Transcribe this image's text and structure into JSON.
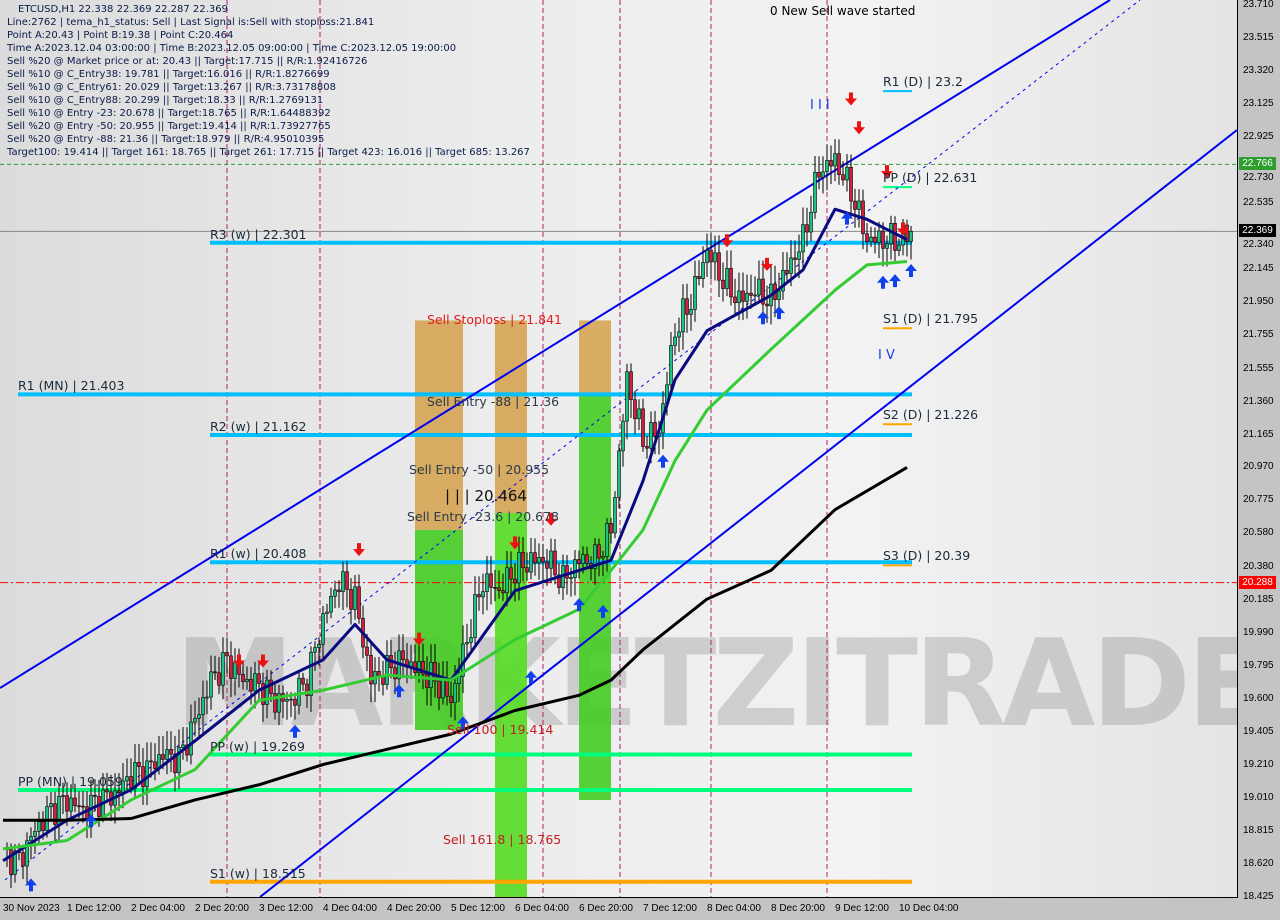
{
  "chart_data": {
    "type": "candlestick",
    "symbol_header": "ETCUSD,H1  22.338 22.369 22.287 22.369",
    "info_lines": [
      "Line:2762 | tema_h1_status: Sell | Last Signal is:Sell with stoploss:21.841",
      "Point A:20.43 | Point B:19.38 | Point C:20.464",
      "Time A:2023.12.04 03:00:00 | Time B:2023.12.05 09:00:00 | Time C:2023.12.05 19:00:00",
      "Sell %20 @ Market price or at: 20.43 || Target:17.715 || R/R:1.92416726",
      "Sell %10 @ C_Entry38: 19.781 || Target:16.016 || R/R:1.8276699",
      "Sell %10 @ C_Entry61: 20.029 || Target:13.267 || R/R:3.73178808",
      "Sell %10 @ C_Entry88: 20.299 || Target:18.33 || R/R:1.2769131",
      "Sell %10 @ Entry -23: 20.678 || Target:18.765 || R/R:1.64488392",
      "Sell %20 @ Entry -50: 20.955 || Target:19.414 || R/R:1.73927765",
      "Sell %20 @ Entry -88: 21.36 || Target:18.979 || R/R:4.95010395",
      "Target100: 19.414 || Target 161: 18.765 || Target 261: 17.715 || Target 423: 16.016 || Target 685: 13.267"
    ],
    "ylim": [
      18.425,
      23.71
    ],
    "y_ticks": [
      "23.710",
      "23.515",
      "23.320",
      "23.125",
      "22.925",
      "22.730",
      "22.535",
      "22.340",
      "22.145",
      "21.950",
      "21.755",
      "21.555",
      "21.360",
      "21.165",
      "20.970",
      "20.775",
      "20.580",
      "20.380",
      "20.185",
      "19.990",
      "19.795",
      "19.600",
      "19.405",
      "19.210",
      "19.010",
      "18.815",
      "18.620",
      "18.425"
    ],
    "x_ticks": [
      {
        "label": "30 Nov 2023",
        "hour": 0
      },
      {
        "label": "1 Dec 12:00",
        "hour": 16
      },
      {
        "label": "2 Dec 04:00",
        "hour": 32
      },
      {
        "label": "2 Dec 20:00",
        "hour": 48
      },
      {
        "label": "3 Dec 12:00",
        "hour": 64
      },
      {
        "label": "4 Dec 04:00",
        "hour": 80
      },
      {
        "label": "4 Dec 20:00",
        "hour": 96
      },
      {
        "label": "5 Dec 12:00",
        "hour": 112
      },
      {
        "label": "6 Dec 04:00",
        "hour": 128
      },
      {
        "label": "6 Dec 20:00",
        "hour": 144
      },
      {
        "label": "7 Dec 12:00",
        "hour": 160
      },
      {
        "label": "8 Dec 04:00",
        "hour": 176
      },
      {
        "label": "8 Dec 20:00",
        "hour": 192
      },
      {
        "label": "9 Dec 12:00",
        "hour": 208
      },
      {
        "label": "10 Dec 04:00",
        "hour": 224
      }
    ],
    "close_every_4h": [
      18.675,
      18.64,
      18.82,
      18.94,
      19.0,
      18.94,
      19.0,
      19.03,
      19.15,
      19.18,
      19.27,
      19.24,
      19.47,
      19.71,
      19.83,
      19.71,
      19.68,
      19.59,
      19.59,
      19.71,
      20.07,
      20.3,
      20.19,
      19.71,
      19.77,
      19.83,
      19.77,
      19.71,
      19.59,
      19.95,
      20.3,
      20.24,
      20.36,
      20.42,
      20.42,
      20.3,
      20.42,
      20.42,
      20.6,
      21.49,
      21.13,
      21.19,
      21.78,
      21.96,
      22.26,
      22.08,
      21.96,
      22.02,
      21.96,
      22.14,
      22.32,
      22.73,
      22.79,
      22.61,
      22.32,
      22.32,
      22.32,
      22.369
    ],
    "moving_averages": [
      {
        "color": "#0a0a80",
        "points": [
          [
            0,
            18.64
          ],
          [
            16,
            18.88
          ],
          [
            32,
            19.06
          ],
          [
            48,
            19.35
          ],
          [
            64,
            19.65
          ],
          [
            80,
            19.83
          ],
          [
            88,
            20.04
          ],
          [
            96,
            19.83
          ],
          [
            112,
            19.71
          ],
          [
            128,
            20.24
          ],
          [
            144,
            20.36
          ],
          [
            152,
            20.42
          ],
          [
            160,
            20.89
          ],
          [
            168,
            21.49
          ],
          [
            176,
            21.78
          ],
          [
            192,
            21.99
          ],
          [
            200,
            22.14
          ],
          [
            208,
            22.5
          ],
          [
            216,
            22.44
          ],
          [
            226,
            22.32
          ]
        ]
      },
      {
        "color": "#33cc33",
        "points": [
          [
            0,
            18.71
          ],
          [
            16,
            18.76
          ],
          [
            32,
            19.0
          ],
          [
            48,
            19.18
          ],
          [
            64,
            19.59
          ],
          [
            80,
            19.65
          ],
          [
            96,
            19.74
          ],
          [
            112,
            19.71
          ],
          [
            128,
            19.95
          ],
          [
            144,
            20.13
          ],
          [
            152,
            20.36
          ],
          [
            160,
            20.6
          ],
          [
            168,
            21.01
          ],
          [
            176,
            21.31
          ],
          [
            192,
            21.67
          ],
          [
            208,
            22.02
          ],
          [
            216,
            22.17
          ],
          [
            226,
            22.19
          ]
        ]
      },
      {
        "color": "#000000",
        "points": [
          [
            0,
            18.88
          ],
          [
            16,
            18.88
          ],
          [
            32,
            18.89
          ],
          [
            48,
            19.0
          ],
          [
            64,
            19.09
          ],
          [
            80,
            19.21
          ],
          [
            96,
            19.3
          ],
          [
            112,
            19.39
          ],
          [
            128,
            19.53
          ],
          [
            144,
            19.62
          ],
          [
            152,
            19.71
          ],
          [
            160,
            19.89
          ],
          [
            176,
            20.19
          ],
          [
            192,
            20.36
          ],
          [
            208,
            20.72
          ],
          [
            226,
            20.97
          ]
        ]
      }
    ],
    "levels": [
      {
        "label": "R3 (w) | 22.301",
        "value": 22.301,
        "color": "#00bfff",
        "scope": "w"
      },
      {
        "label": "R1 (MN) | 21.403",
        "value": 21.403,
        "color": "#00bfff",
        "scope": "mn"
      },
      {
        "label": "R2 (w) | 21.162",
        "value": 21.162,
        "color": "#00bfff",
        "scope": "w"
      },
      {
        "label": "R1 (w) | 20.408",
        "value": 20.408,
        "color": "#00bfff",
        "scope": "w"
      },
      {
        "label": "PP (w) | 19.269",
        "value": 19.269,
        "color": "#00ff7f",
        "scope": "w"
      },
      {
        "label": "PP (MN) | 19.059",
        "value": 19.059,
        "color": "#00ff7f",
        "scope": "mn"
      },
      {
        "label": "S1 (w) | 18.515",
        "value": 18.515,
        "color": "#ffa500",
        "scope": "w"
      },
      {
        "label": "R1 (D) | 23.2",
        "value": 23.2,
        "color": "#00bfff",
        "scope": "d"
      },
      {
        "label": "PP (D) | 22.631",
        "value": 22.631,
        "color": "#00ff7f",
        "scope": "d"
      },
      {
        "label": "S1 (D) | 21.795",
        "value": 21.795,
        "color": "#ffa500",
        "scope": "d"
      },
      {
        "label": "S2 (D) | 21.226",
        "value": 21.226,
        "color": "#ffa500",
        "scope": "d"
      },
      {
        "label": "S3 (D) | 20.39",
        "value": 20.39,
        "color": "#ffa500",
        "scope": "d"
      }
    ],
    "price_tags": [
      {
        "value": 22.766,
        "text": "22.766",
        "bg": "#2e9e2e",
        "fg": "#ffffff",
        "line": "dashed-green"
      },
      {
        "value": 22.369,
        "text": "22.369",
        "bg": "#000000",
        "fg": "#ffffff",
        "line": "gray"
      },
      {
        "value": 20.288,
        "text": "20.288",
        "bg": "#ff0000",
        "fg": "#ffffff",
        "line": "dashdot-red"
      }
    ],
    "annotations": [
      {
        "text": "Sell Stoploss | 21.841",
        "value": 21.841,
        "hour": 106,
        "color": "#e02020"
      },
      {
        "text": "Sell Entry -88 | 21.36",
        "value": 21.36,
        "hour": 106,
        "color": "#2a3a4a"
      },
      {
        "text": "Sell Entry -50 | 20.955",
        "value": 20.955,
        "hour": 101.5,
        "color": "#2a3a4a"
      },
      {
        "text": "Sell Entry -23.6 | 20.678",
        "value": 20.678,
        "hour": 101,
        "color": "#2a3a4a"
      },
      {
        "text": "Sell 100 | 19.414",
        "value": 19.414,
        "hour": 111,
        "color": "#c02020"
      },
      {
        "text": "Sell 161.8 | 18.765",
        "value": 18.765,
        "hour": 110,
        "color": "#c02020"
      }
    ],
    "wave_label": "| | | 20.464",
    "wave_status": "0 New Sell wave started",
    "wave_marks": [
      "I I I",
      "I V"
    ],
    "signals_down": [
      [
        59,
        19.82
      ],
      [
        65,
        19.82
      ],
      [
        89,
        20.48
      ],
      [
        104,
        19.95
      ],
      [
        128,
        20.52
      ],
      [
        137,
        20.66
      ],
      [
        181,
        22.31
      ],
      [
        191,
        22.17
      ],
      [
        212,
        23.15
      ],
      [
        214,
        22.98
      ],
      [
        221,
        22.72
      ],
      [
        225,
        22.38
      ]
    ],
    "signals_up": [
      [
        7,
        18.5
      ],
      [
        22,
        18.88
      ],
      [
        73,
        19.41
      ],
      [
        99,
        19.65
      ],
      [
        115,
        19.46
      ],
      [
        132,
        19.73
      ],
      [
        144,
        20.16
      ],
      [
        150,
        20.12
      ],
      [
        165,
        21.01
      ],
      [
        190,
        21.86
      ],
      [
        194,
        21.89
      ],
      [
        211,
        22.45
      ],
      [
        220,
        22.07
      ],
      [
        223,
        22.08
      ],
      [
        227,
        22.14
      ]
    ],
    "watermark": "MARKETZITRADE"
  }
}
